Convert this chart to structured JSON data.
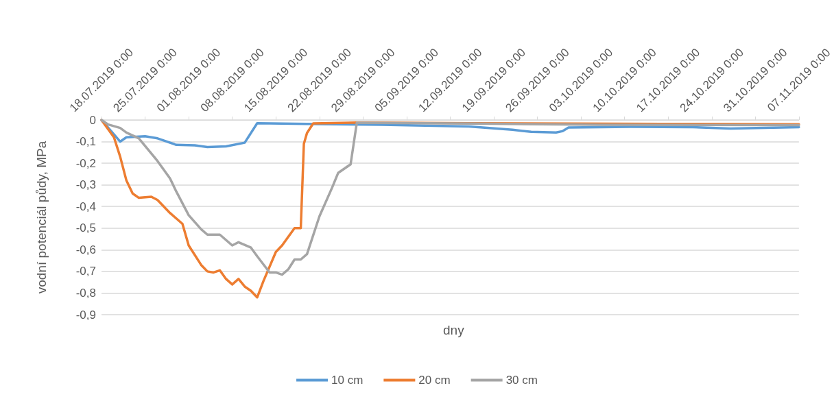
{
  "chart_data": {
    "type": "line",
    "xlabel": "dny",
    "ylabel": "vodní potenciál půdy, MPa",
    "xlim": [
      "2019-07-18",
      "2019-11-07"
    ],
    "xticks": [
      {
        "value": "2019-07-18",
        "label": "18.07.2019 0:00"
      },
      {
        "value": "2019-07-25",
        "label": "25.07.2019 0:00"
      },
      {
        "value": "2019-08-01",
        "label": "01.08.2019 0:00"
      },
      {
        "value": "2019-08-08",
        "label": "08.08.2019 0:00"
      },
      {
        "value": "2019-08-15",
        "label": "15.08.2019 0:00"
      },
      {
        "value": "2019-08-22",
        "label": "22.08.2019 0:00"
      },
      {
        "value": "2019-08-29",
        "label": "29.08.2019 0:00"
      },
      {
        "value": "2019-09-05",
        "label": "05.09.2019 0:00"
      },
      {
        "value": "2019-09-12",
        "label": "12.09.2019 0:00"
      },
      {
        "value": "2019-09-19",
        "label": "19.09.2019 0:00"
      },
      {
        "value": "2019-09-26",
        "label": "26.09.2019 0:00"
      },
      {
        "value": "2019-10-03",
        "label": "03.10.2019 0:00"
      },
      {
        "value": "2019-10-10",
        "label": "10.10.2019 0:00"
      },
      {
        "value": "2019-10-17",
        "label": "17.10.2019 0:00"
      },
      {
        "value": "2019-10-24",
        "label": "24.10.2019 0:00"
      },
      {
        "value": "2019-10-31",
        "label": "31.10.2019 0:00"
      },
      {
        "value": "2019-11-07",
        "label": "07.11.2019 0:00"
      }
    ],
    "ylim": [
      -0.9,
      0
    ],
    "yticks": [
      0,
      {
        "value": -0.1,
        "label": "-0,1"
      },
      {
        "value": -0.2,
        "label": "-0,2"
      },
      {
        "value": -0.3,
        "label": "-0,3"
      },
      {
        "value": -0.4,
        "label": "-0,4"
      },
      {
        "value": -0.5,
        "label": "-0,5"
      },
      {
        "value": -0.6,
        "label": "-0,6"
      },
      {
        "value": -0.7,
        "label": "-0,7"
      },
      {
        "value": -0.8,
        "label": "-0,8"
      },
      {
        "value": -0.9,
        "label": "-0,9"
      }
    ],
    "grid": "y",
    "legend": "bottom",
    "marker": "none",
    "line_style": "solid",
    "series": [
      {
        "name": "10 cm",
        "color": "#5b9bd5",
        "x": [
          "2019-07-18",
          "2019-07-21",
          "2019-07-22",
          "2019-07-25",
          "2019-07-27",
          "2019-07-30",
          "2019-08-02",
          "2019-08-04",
          "2019-08-07",
          "2019-08-10",
          "2019-08-12",
          "2019-08-20",
          "2019-09-01",
          "2019-09-15",
          "2019-09-22",
          "2019-09-25",
          "2019-09-29",
          "2019-09-30",
          "2019-10-01",
          "2019-10-11",
          "2019-10-21",
          "2019-10-27",
          "2019-11-07"
        ],
        "values": [
          0,
          -0.1,
          -0.08,
          -0.075,
          -0.085,
          -0.115,
          -0.117,
          -0.125,
          -0.122,
          -0.105,
          -0.015,
          -0.018,
          -0.022,
          -0.03,
          -0.045,
          -0.055,
          -0.058,
          -0.052,
          -0.035,
          -0.032,
          -0.033,
          -0.04,
          -0.033
        ]
      },
      {
        "name": "20 cm",
        "color": "#ed7d31",
        "x": [
          "2019-07-18",
          "2019-07-19",
          "2019-07-20",
          "2019-07-21",
          "2019-07-22",
          "2019-07-23",
          "2019-07-24",
          "2019-07-26",
          "2019-07-27",
          "2019-07-29",
          "2019-07-31",
          "2019-08-01",
          "2019-08-03",
          "2019-08-04",
          "2019-08-05",
          "2019-08-06",
          "2019-08-07",
          "2019-08-08",
          "2019-08-09",
          "2019-08-10",
          "2019-08-11",
          "2019-08-12",
          "2019-08-13",
          "2019-08-15",
          "2019-08-16",
          "2019-08-18",
          "2019-08-19",
          "2019-08-19T12:00",
          "2019-08-20",
          "2019-08-21",
          "2019-08-28",
          "2019-09-16",
          "2019-10-16",
          "2019-11-07"
        ],
        "values": [
          0,
          -0.04,
          -0.08,
          -0.17,
          -0.28,
          -0.34,
          -0.36,
          -0.355,
          -0.37,
          -0.43,
          -0.48,
          -0.58,
          -0.67,
          -0.7,
          -0.705,
          -0.695,
          -0.735,
          -0.76,
          -0.735,
          -0.77,
          -0.79,
          -0.82,
          -0.745,
          -0.61,
          -0.58,
          -0.5,
          -0.5,
          -0.11,
          -0.06,
          -0.016,
          -0.012,
          -0.015,
          -0.018,
          -0.02
        ]
      },
      {
        "name": "30 cm",
        "color": "#a5a5a5",
        "x": [
          "2019-07-18",
          "2019-07-19",
          "2019-07-21",
          "2019-07-22",
          "2019-07-24",
          "2019-07-25",
          "2019-07-27",
          "2019-07-29",
          "2019-07-30",
          "2019-08-01",
          "2019-08-03",
          "2019-08-04",
          "2019-08-06",
          "2019-08-08",
          "2019-08-09",
          "2019-08-11",
          "2019-08-12",
          "2019-08-14",
          "2019-08-15",
          "2019-08-16",
          "2019-08-17",
          "2019-08-18",
          "2019-08-19",
          "2019-08-20",
          "2019-08-22",
          "2019-08-24",
          "2019-08-25",
          "2019-08-27",
          "2019-08-28",
          "2019-09-16",
          "2019-10-06",
          "2019-11-07"
        ],
        "values": [
          0,
          -0.02,
          -0.037,
          -0.058,
          -0.085,
          -0.12,
          -0.19,
          -0.27,
          -0.33,
          -0.44,
          -0.505,
          -0.53,
          -0.53,
          -0.58,
          -0.565,
          -0.59,
          -0.63,
          -0.705,
          -0.705,
          -0.715,
          -0.69,
          -0.645,
          -0.645,
          -0.62,
          -0.445,
          -0.315,
          -0.245,
          -0.205,
          -0.013,
          -0.017,
          -0.022,
          -0.024
        ]
      }
    ]
  }
}
